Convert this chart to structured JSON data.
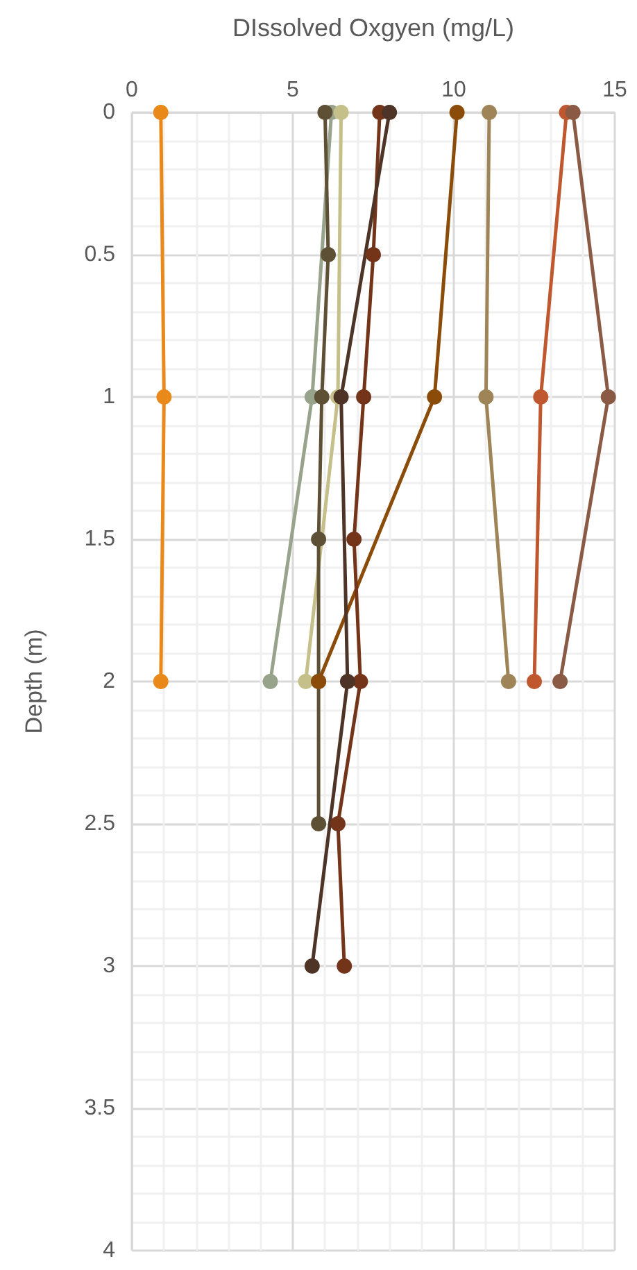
{
  "chart_data": {
    "type": "line",
    "xlabel": "DIssolved Oxgyen (mg/L)",
    "ylabel": "Depth (m)",
    "xlim": [
      0,
      15
    ],
    "xticks": [
      0,
      5,
      10,
      15
    ],
    "ylim": [
      4,
      0
    ],
    "yticks": [
      0,
      0.5,
      1,
      1.5,
      2,
      2.5,
      3,
      3.5,
      4
    ],
    "grid": true,
    "marker": "circle",
    "line_style": "solid",
    "series": [
      {
        "color": "#e8891a",
        "x": [
          0.9,
          1.0,
          0.9
        ],
        "values": [
          0,
          1,
          2
        ]
      },
      {
        "color": "#97a38a",
        "x": [
          6.2,
          5.6,
          4.3
        ],
        "values": [
          0,
          1,
          2
        ]
      },
      {
        "color": "#c5c08a",
        "x": [
          6.5,
          6.4,
          5.4
        ],
        "values": [
          0,
          1,
          2
        ]
      },
      {
        "color": "#5e5035",
        "x": [
          6.0,
          6.1,
          5.9,
          5.8,
          5.8,
          5.8
        ],
        "values": [
          0,
          0.5,
          1,
          1.5,
          2,
          2.5
        ]
      },
      {
        "color": "#8b4c0a",
        "x": [
          10.1,
          9.4,
          5.8
        ],
        "values": [
          0,
          1,
          2
        ]
      },
      {
        "color": "#9e8456",
        "x": [
          11.1,
          11.0,
          11.7
        ],
        "values": [
          0,
          1,
          2
        ]
      },
      {
        "color": "#c0582f",
        "x": [
          13.5,
          12.7,
          12.5
        ],
        "values": [
          0,
          1,
          2
        ]
      },
      {
        "color": "#8a5a44",
        "x": [
          13.7,
          14.8,
          13.3
        ],
        "values": [
          0,
          1,
          2
        ]
      },
      {
        "color": "#73341a",
        "x": [
          7.7,
          7.5,
          7.2,
          6.9,
          7.1,
          6.4,
          6.6
        ],
        "values": [
          0,
          0.5,
          1,
          1.5,
          2,
          2.5,
          3
        ]
      },
      {
        "color": "#4e3426",
        "x": [
          8.0,
          6.5,
          6.7,
          5.6
        ],
        "values": [
          0,
          1,
          2,
          3
        ]
      }
    ]
  }
}
